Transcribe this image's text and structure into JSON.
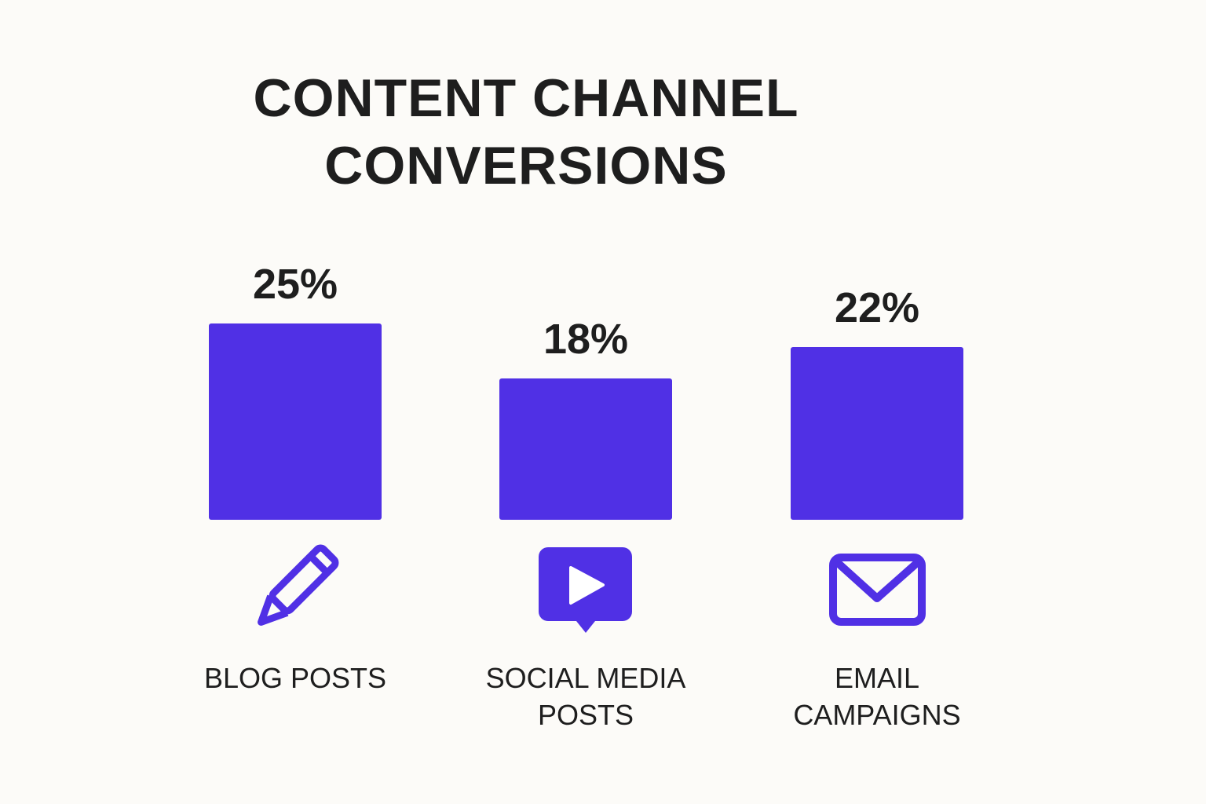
{
  "chart_data": {
    "type": "bar",
    "title": "CONTENT CHANNEL CONVERSIONS",
    "categories": [
      "BLOG POSTS",
      "SOCIAL MEDIA POSTS",
      "EMAIL CAMPAIGNS"
    ],
    "values": [
      25,
      18,
      22
    ],
    "value_labels": [
      "25%",
      "18%",
      "22%"
    ],
    "color": "#5030e5"
  }
}
